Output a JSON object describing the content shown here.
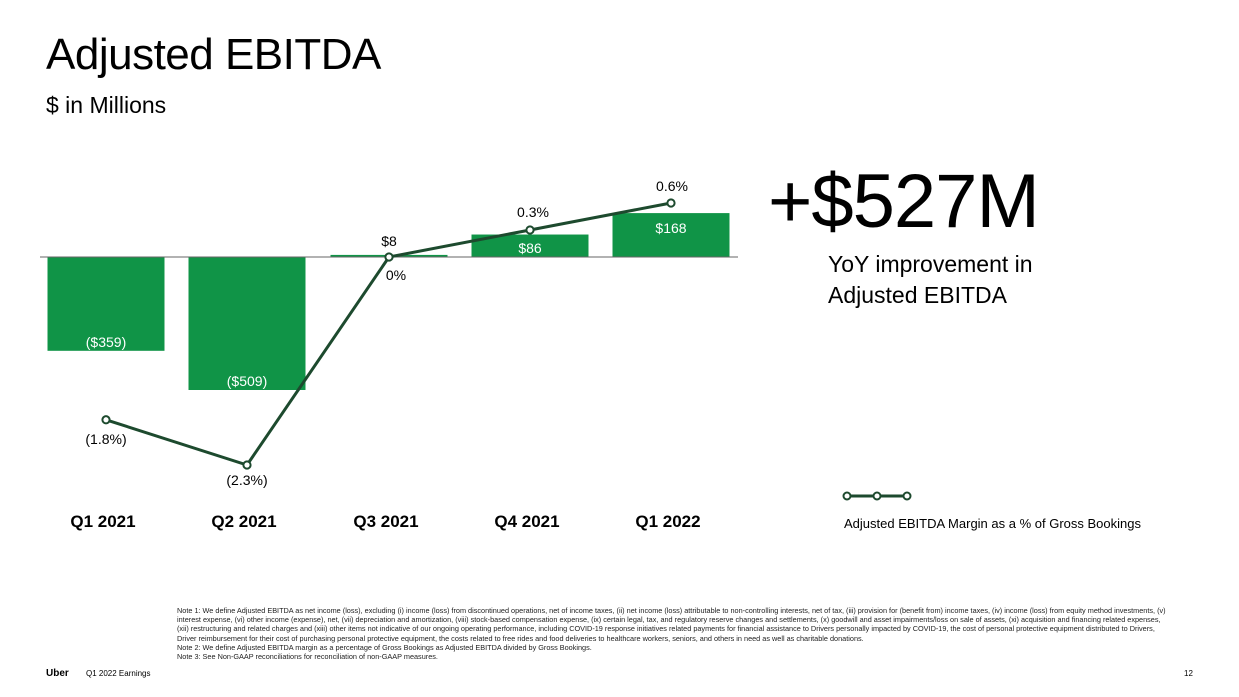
{
  "header": {
    "title": "Adjusted EBITDA",
    "subtitle": "$ in Millions"
  },
  "highlight": {
    "value": "+$527M",
    "caption_line1": "YoY improvement in",
    "caption_line2": "Adjusted EBITDA"
  },
  "legend": {
    "label": "Adjusted EBITDA Margin as a % of Gross Bookings"
  },
  "colors": {
    "bar": "#109447",
    "line": "#1d4a2e",
    "baseline": "#666666"
  },
  "chart_data": {
    "type": "bar",
    "categories": [
      "Q1 2021",
      "Q2 2021",
      "Q3 2021",
      "Q4 2021",
      "Q1 2022"
    ],
    "series": [
      {
        "values": [
          -359,
          -509,
          8,
          86,
          168
        ],
        "labels": [
          "($359)",
          "($509)",
          "$8",
          "$86",
          "$168"
        ]
      },
      {
        "name": "Adjusted EBITDA Margin as a % of Gross Bookings",
        "type": "line",
        "values": [
          -1.8,
          -2.3,
          0,
          0.3,
          0.6
        ],
        "labels": [
          "(1.8%)",
          "(2.3%)",
          "0%",
          "0.3%",
          "0.6%"
        ]
      }
    ],
    "title": "Adjusted EBITDA",
    "ylabel": "$ in Millions",
    "grid": false,
    "legend": "right"
  },
  "notes": {
    "note1": "Note 1: We define Adjusted EBITDA as net income (loss), excluding (i) income (loss) from discontinued operations, net of income taxes, (ii) net income (loss) attributable to non-controlling interests, net of tax, (iii) provision for (benefit from) income taxes, (iv) income (loss) from equity method investments, (v) interest expense, (vi) other income (expense), net, (vii) depreciation and amortization, (viii) stock-based compensation expense, (ix) certain legal, tax, and regulatory reserve changes and settlements, (x) goodwill and asset impairments/loss on sale of assets, (xi) acquisition and financing related expenses, (xii) restructuring and related charges and (xiii) other items not indicative of our ongoing operating performance, including COVID-19 response initiatives related payments for financial assistance to Drivers personally impacted by COVID-19, the cost of personal protective equipment distributed to Drivers, Driver reimbursement for their cost of purchasing personal protective equipment, the costs related to free rides and food deliveries to healthcare workers, seniors, and others in need as well as charitable donations.",
    "note2": "Note 2: We define Adjusted EBITDA margin as a percentage of Gross Bookings as Adjusted EBITDA divided by Gross Bookings.",
    "note3": "Note 3: See Non-GAAP reconciliations for reconciliation of non-GAAP measures."
  },
  "footer": {
    "brand": "Uber",
    "label": "Q1 2022 Earnings",
    "page": "12"
  }
}
